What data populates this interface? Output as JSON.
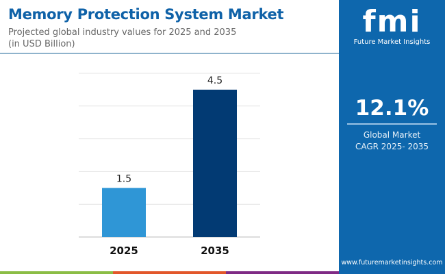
{
  "header": {
    "title": "Memory Protection System Market",
    "subtitle": "Projected global industry values for 2025 and 2035",
    "unit": "(in USD Billion)"
  },
  "chart_data": {
    "type": "bar",
    "categories": [
      "2025",
      "2035"
    ],
    "values": [
      1.5,
      4.5
    ],
    "data_labels": [
      "1.5",
      "4.5"
    ],
    "ylim": [
      0,
      5
    ],
    "grid": true,
    "colors": [
      "#2f96d6",
      "#023a73"
    ]
  },
  "panel": {
    "logo_text": "fmi",
    "logo_name": "Future Market Insights",
    "cagr": "12.1%",
    "cagr_label1": "Global Market",
    "cagr_label2": "CAGR 2025- 2035",
    "url": "www.futuremarketinsights.com"
  },
  "colors": {
    "brand": "#0e67ad",
    "stripes": [
      "#8bbd45",
      "#e2572a",
      "#7f2a85"
    ]
  }
}
